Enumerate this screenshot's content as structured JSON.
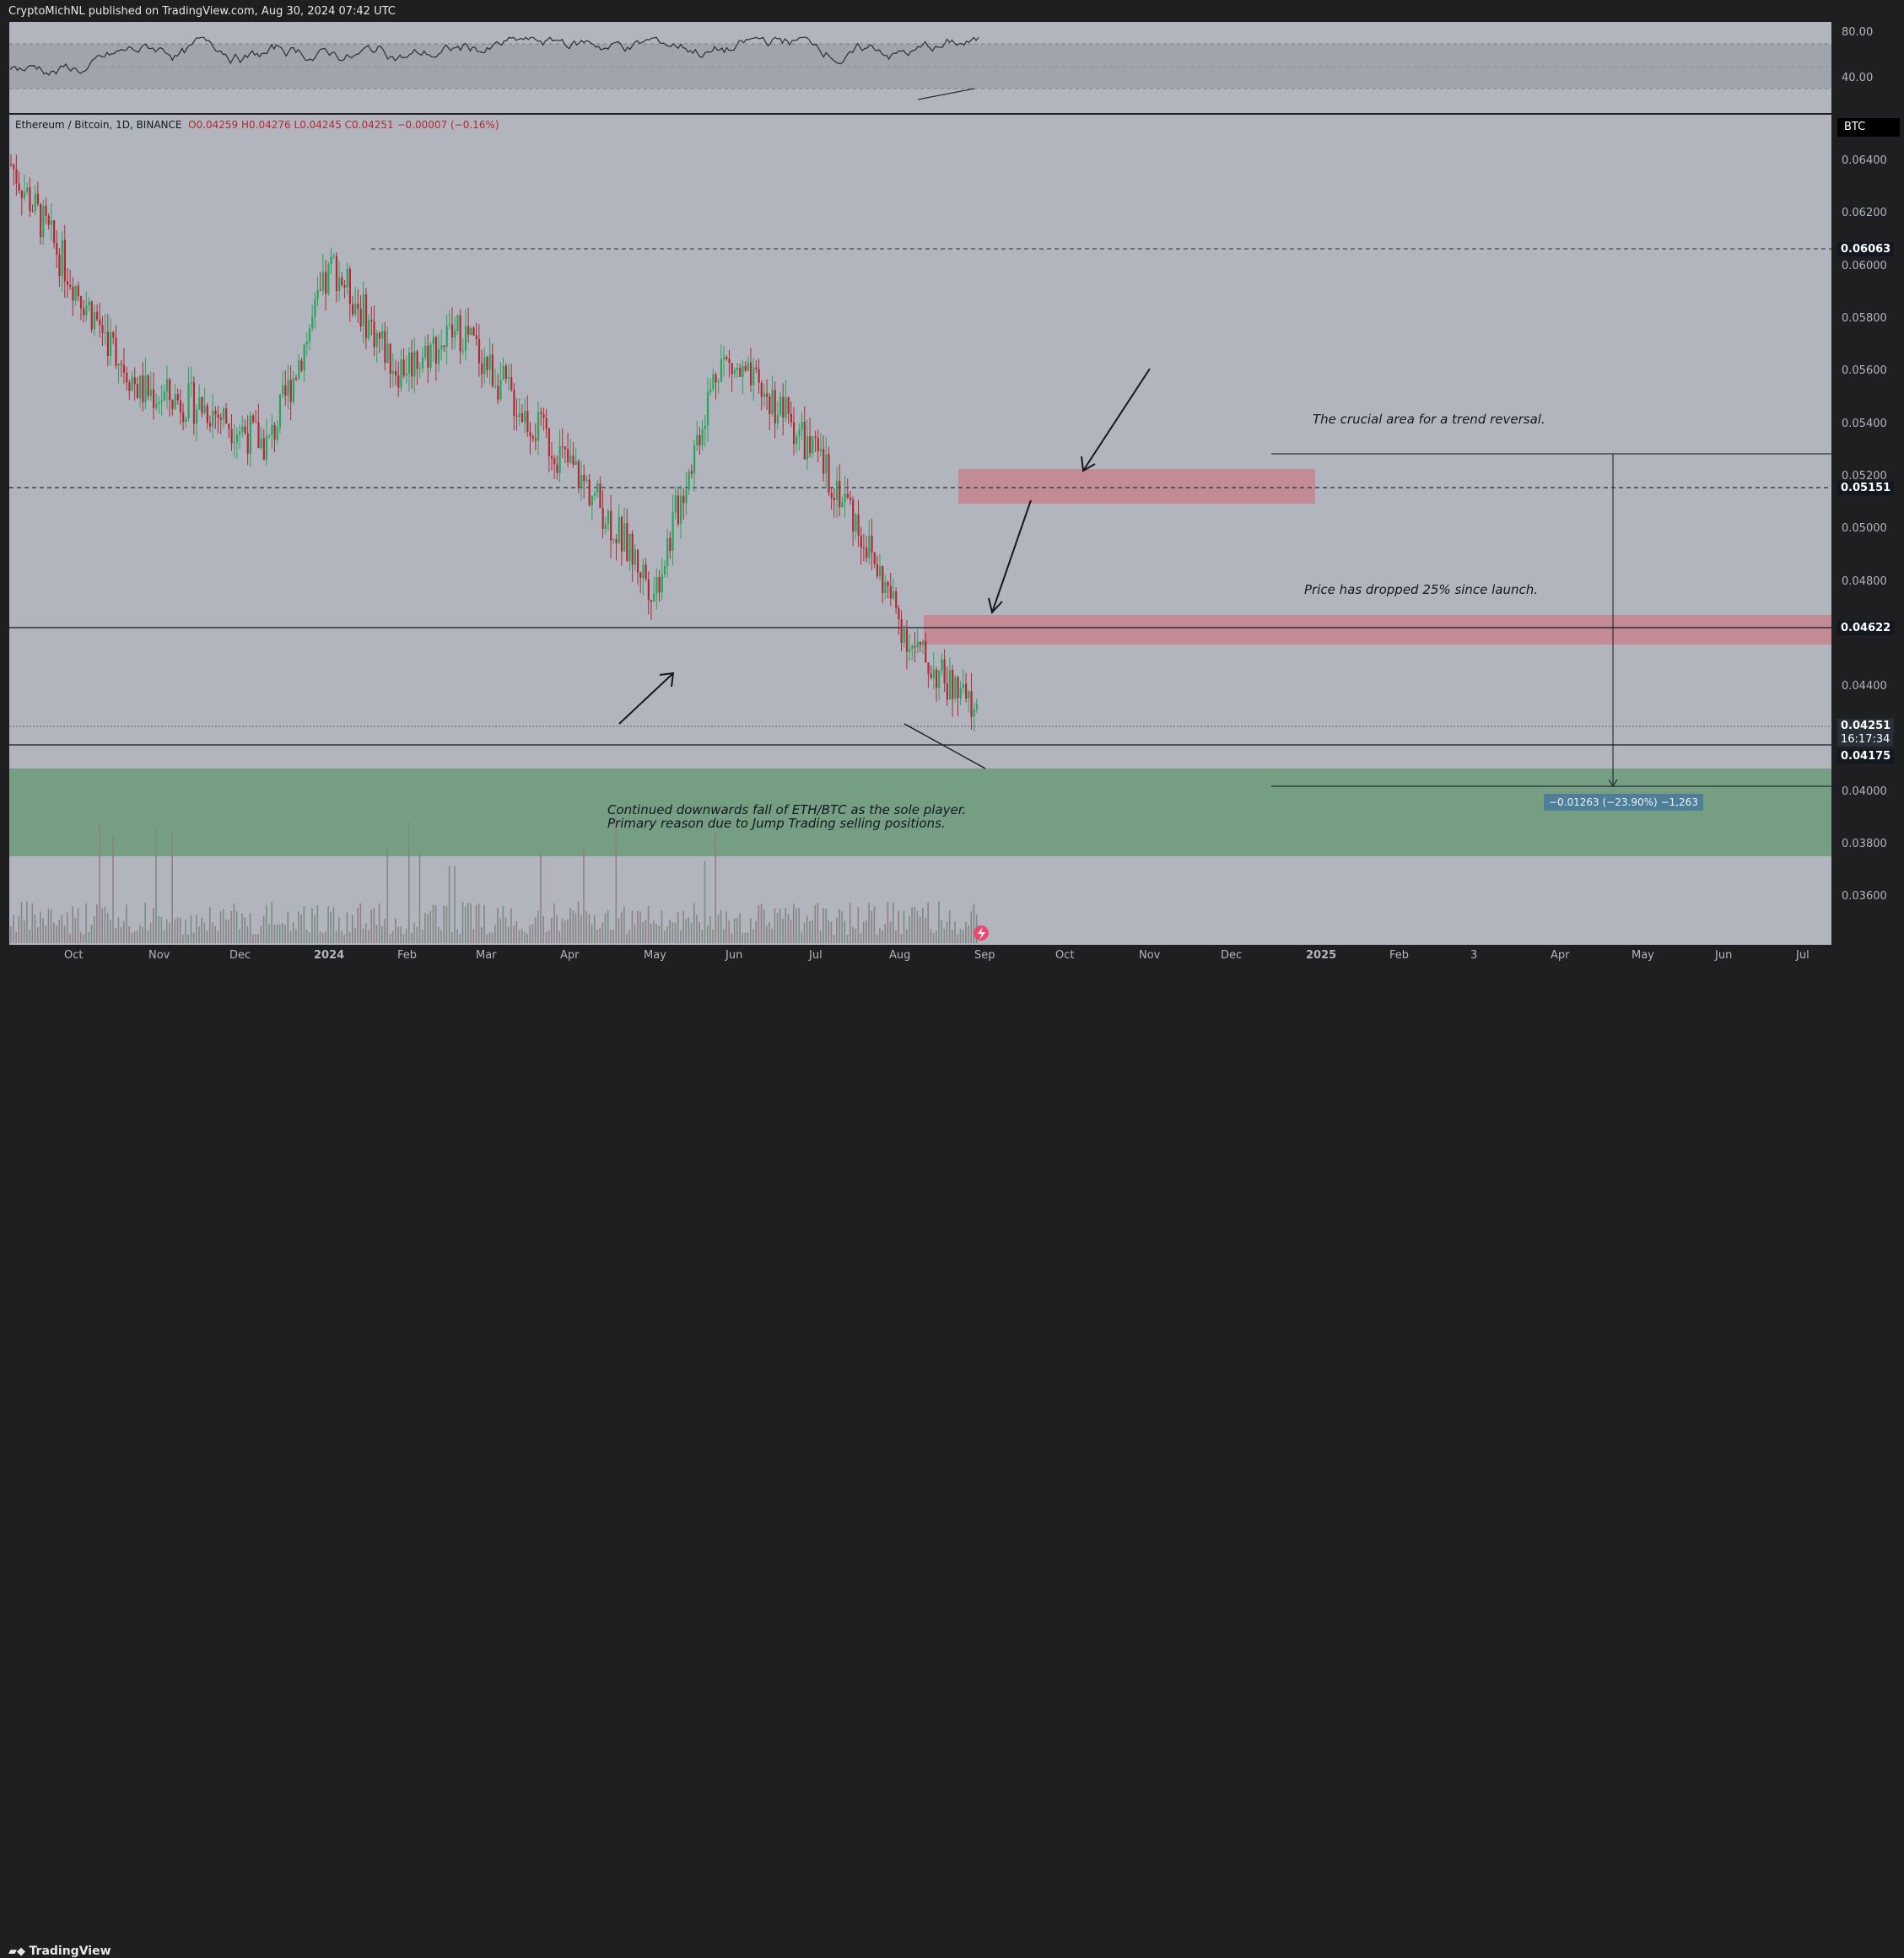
{
  "header": {
    "publisher_line": "CryptoMichNL published on TradingView.com, Aug 30, 2024 07:42 UTC"
  },
  "symbol": {
    "name": "Ethereum / Bitcoin, 1D, BINANCE",
    "open": "O0.04259",
    "high": "H0.04276",
    "low": "L0.04245",
    "close": "C0.04251",
    "change": "−0.00007 (−0.16%)"
  },
  "currency_badge": "BTC",
  "rsi_axis": [
    "80.00",
    "40.00"
  ],
  "price_axis": [
    "0.06400",
    "0.06200",
    "0.06000",
    "0.05800",
    "0.05600",
    "0.05400",
    "0.05200",
    "0.05000",
    "0.04800",
    "0.04400",
    "0.04000",
    "0.03800",
    "0.03600"
  ],
  "price_labels": {
    "level1": "0.06063",
    "level2": "0.05151",
    "level3": "0.04622",
    "last": "0.04251",
    "countdown": "16:17:34",
    "level4": "0.04175"
  },
  "time_axis": [
    "Oct",
    "Nov",
    "Dec",
    "2024",
    "Feb",
    "Mar",
    "Apr",
    "May",
    "Jun",
    "Jul",
    "Aug",
    "Sep",
    "Oct",
    "Nov",
    "Dec",
    "2025",
    "Feb",
    "3",
    "Apr",
    "May",
    "Jun",
    "Jul"
  ],
  "annotations": {
    "reversal": "The crucial area for a trend reversal.",
    "dropped": "Price has dropped 25% since launch.",
    "jump_line1": "Continued downwards fall of ETH/BTC as the sole player.",
    "jump_line2": "Primary reason due to Jump Trading selling positions."
  },
  "measure_label": "−0.01263 (−23.90%) −1,263",
  "footer": {
    "logo": "TradingView"
  },
  "colors": {
    "up": "#26a65b",
    "down": "#b22833",
    "pane": "#b2b5be",
    "zone_red": "#c4848f",
    "zone_green": "#6b9a78",
    "axis_bg": "#1f1f22"
  },
  "chart_data": {
    "type": "candlestick",
    "title": "Ethereum / Bitcoin, 1D, BINANCE",
    "x": [
      "Sep",
      "Oct",
      "Nov",
      "Dec",
      "2024",
      "Feb",
      "Mar",
      "Apr",
      "May",
      "Jun",
      "Jul",
      "Aug",
      "Sep"
    ],
    "close_path": [
      0.0634,
      0.0588,
      0.0548,
      0.0542,
      0.0527,
      0.0596,
      0.0556,
      0.0571,
      0.0538,
      0.051,
      0.0472,
      0.056,
      0.054,
      0.0505,
      0.045,
      0.0425
    ],
    "ylim": [
      0.0345,
      0.065
    ],
    "levels": [
      0.06063,
      0.05151,
      0.04622,
      0.04175
    ],
    "zones": [
      {
        "name": "reversal",
        "from": 0.051,
        "to": 0.0522
      },
      {
        "name": "resistance",
        "from": 0.0456,
        "to": 0.0467
      },
      {
        "name": "support",
        "from": 0.0375,
        "to": 0.0409
      }
    ],
    "rsi": {
      "ylim": [
        20,
        90
      ],
      "levels": [
        80,
        40
      ]
    }
  }
}
